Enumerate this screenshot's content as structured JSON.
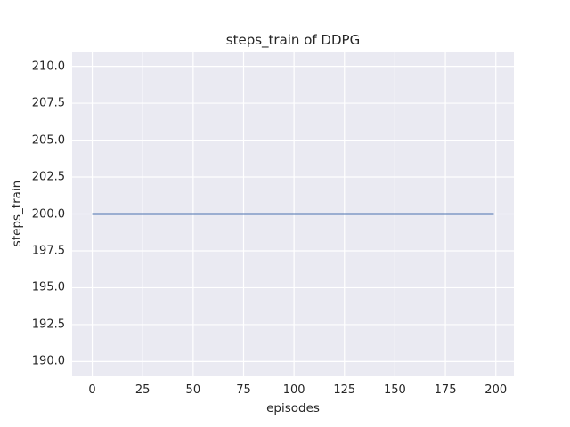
{
  "chart_data": {
    "type": "line",
    "title": "steps_train of DDPG",
    "xlabel": "episodes",
    "ylabel": "steps_train",
    "x_ticks": [
      0,
      25,
      50,
      75,
      100,
      125,
      150,
      175,
      200
    ],
    "x_tick_labels": [
      "0",
      "25",
      "50",
      "75",
      "100",
      "125",
      "150",
      "175",
      "200"
    ],
    "y_ticks": [
      190.0,
      192.5,
      195.0,
      197.5,
      200.0,
      202.5,
      205.0,
      207.5,
      210.0
    ],
    "y_tick_labels": [
      "190.0",
      "192.5",
      "195.0",
      "197.5",
      "200.0",
      "202.5",
      "205.0",
      "207.5",
      "210.0"
    ],
    "xlim": [
      -9.95,
      208.95
    ],
    "ylim": [
      189.0,
      211.0
    ],
    "grid": true,
    "legend": false,
    "style": "seaborn-darkgrid",
    "series": [
      {
        "name": "steps_train",
        "color": "#4C72B0",
        "line_width": 2,
        "description": "constant value 200 for every episode from 0 to 199",
        "points": [
          [
            0,
            200
          ],
          [
            199,
            200
          ]
        ]
      }
    ],
    "colors": {
      "figure_background": "#FFFFFF",
      "axes_background": "#EAEAF2",
      "grid_line": "#FFFFFF",
      "text": "#262626"
    }
  }
}
